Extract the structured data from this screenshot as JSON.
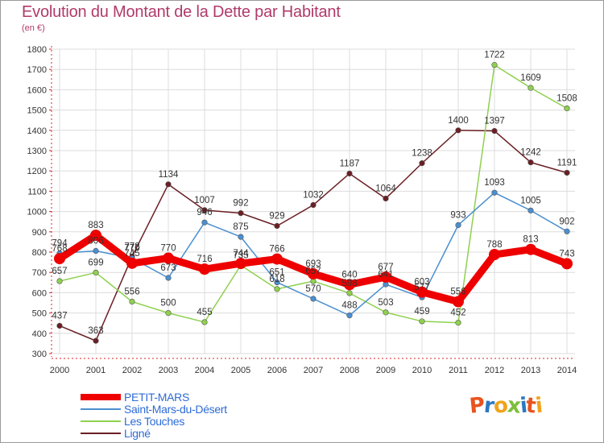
{
  "title": "Evolution du Montant de la Dette par Habitant",
  "unit_label": "(en €)",
  "brand": "Proxiti",
  "chart_data": {
    "type": "line",
    "title": "Evolution du Montant de la Dette par Habitant",
    "ylabel": "(en €)",
    "xlabel": "",
    "x": [
      "2000",
      "2001",
      "2002",
      "2003",
      "2004",
      "2005",
      "2006",
      "2007",
      "2008",
      "2009",
      "2010",
      "2011",
      "2012",
      "2013",
      "2014"
    ],
    "ylim": [
      300,
      1800
    ],
    "yticks": [
      300,
      400,
      500,
      600,
      700,
      800,
      900,
      1000,
      1100,
      1200,
      1300,
      1400,
      1500,
      1600,
      1700,
      1800
    ],
    "grid": true,
    "legend_position": "bottom-left",
    "series": [
      {
        "name": "Ligné",
        "color": "#6b1f24",
        "values": [
          437,
          363,
          778,
          1134,
          1007,
          992,
          929,
          1032,
          1187,
          1064,
          1238,
          1400,
          1397,
          1242,
          1191
        ]
      },
      {
        "name": "Les Touches",
        "color": "#8fd14f",
        "values": [
          657,
          699,
          556,
          500,
          455,
          735,
          618,
          657,
          598,
          503,
          459,
          452,
          1722,
          1609,
          1508
        ]
      },
      {
        "name": "Saint-Mars-du-Désert",
        "color": "#4a8fd0",
        "values": [
          794,
          806,
          770,
          673,
          946,
          875,
          651,
          570,
          488,
          641,
          577,
          933,
          1093,
          1005,
          902
        ]
      },
      {
        "name": "PETIT-MARS",
        "color": "#ee0000",
        "values": [
          768,
          883,
          745,
          770,
          716,
          744,
          766,
          693,
          640,
          677,
          603,
          556,
          788,
          813,
          743
        ]
      }
    ]
  }
}
